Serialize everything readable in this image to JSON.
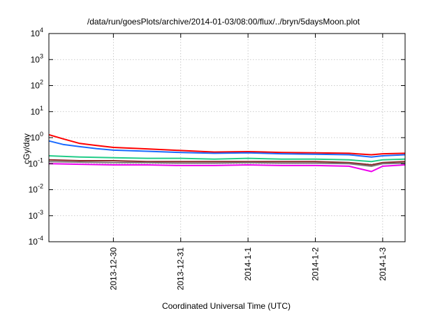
{
  "chart_data": {
    "type": "line",
    "title": "/data/run/goesPlots/archive/2014-01-03/08:00/flux/../bryn/5daysMoon.plot",
    "xlabel": "Coordinated Universal Time (UTC)",
    "ylabel": "cGy/day",
    "yscale": "log",
    "ylim": [
      0.0001,
      10000
    ],
    "xlim": [
      "2013-12-29 01:00",
      "2014-01-03 08:00"
    ],
    "x_ticks": [
      {
        "date": "2013-12-30 00:00",
        "label": "2013-12-30"
      },
      {
        "date": "2013-12-31 00:00",
        "label": "2013-12-31"
      },
      {
        "date": "2014-01-01 00:00",
        "label": "2014-1-1"
      },
      {
        "date": "2014-01-02 00:00",
        "label": "2014-1-2"
      },
      {
        "date": "2014-01-03 00:00",
        "label": "2014-1-3"
      }
    ],
    "y_ticks": [
      {
        "value": 0.0001,
        "base": "10",
        "exp": "-4"
      },
      {
        "value": 0.001,
        "base": "10",
        "exp": "-3"
      },
      {
        "value": 0.01,
        "base": "10",
        "exp": "-2"
      },
      {
        "value": 0.1,
        "base": "10",
        "exp": "-1"
      },
      {
        "value": 1,
        "base": "10",
        "exp": "0"
      },
      {
        "value": 10,
        "base": "10",
        "exp": "1"
      },
      {
        "value": 100,
        "base": "10",
        "exp": "2"
      },
      {
        "value": 1000,
        "base": "10",
        "exp": "3"
      },
      {
        "value": 10000,
        "base": "10",
        "exp": "4"
      }
    ],
    "grid": true,
    "legend": "none",
    "series": [
      {
        "color": "#ff0000",
        "x": [
          "2013-12-29 01:00",
          "2013-12-29 06:00",
          "2013-12-29 12:00",
          "2013-12-29 18:00",
          "2013-12-30 00:00",
          "2013-12-30 12:00",
          "2013-12-31 00:00",
          "2013-12-31 12:00",
          "2014-01-01 00:00",
          "2014-01-01 12:00",
          "2014-01-02 00:00",
          "2014-01-02 12:00",
          "2014-01-02 20:00",
          "2014-01-03 00:00",
          "2014-01-03 08:00"
        ],
        "values": [
          1.3,
          0.9,
          0.6,
          0.5,
          0.42,
          0.37,
          0.32,
          0.28,
          0.29,
          0.27,
          0.26,
          0.25,
          0.22,
          0.24,
          0.25
        ]
      },
      {
        "color": "#1a6aff",
        "x": [
          "2013-12-29 01:00",
          "2013-12-29 06:00",
          "2013-12-29 12:00",
          "2013-12-29 18:00",
          "2013-12-30 00:00",
          "2013-12-30 12:00",
          "2013-12-31 00:00",
          "2013-12-31 12:00",
          "2014-01-01 00:00",
          "2014-01-01 12:00",
          "2014-01-02 00:00",
          "2014-01-02 12:00",
          "2014-01-02 20:00",
          "2014-01-03 00:00",
          "2014-01-03 08:00"
        ],
        "values": [
          0.75,
          0.55,
          0.45,
          0.38,
          0.33,
          0.3,
          0.27,
          0.25,
          0.26,
          0.24,
          0.23,
          0.22,
          0.18,
          0.2,
          0.22
        ]
      },
      {
        "color": "#22cc88",
        "x": [
          "2013-12-29 01:00",
          "2013-12-29 12:00",
          "2013-12-30 00:00",
          "2013-12-30 12:00",
          "2013-12-31 00:00",
          "2013-12-31 12:00",
          "2014-01-01 00:00",
          "2014-01-01 12:00",
          "2014-01-02 00:00",
          "2014-01-02 12:00",
          "2014-01-02 20:00",
          "2014-01-03 00:00",
          "2014-01-03 08:00"
        ],
        "values": [
          0.2,
          0.18,
          0.17,
          0.16,
          0.16,
          0.15,
          0.16,
          0.15,
          0.15,
          0.14,
          0.12,
          0.14,
          0.15
        ]
      },
      {
        "color": "#8b2a2a",
        "x": [
          "2013-12-29 01:00",
          "2013-12-29 12:00",
          "2013-12-30 00:00",
          "2013-12-30 12:00",
          "2013-12-31 00:00",
          "2013-12-31 12:00",
          "2014-01-01 00:00",
          "2014-01-01 12:00",
          "2014-01-02 00:00",
          "2014-01-02 12:00",
          "2014-01-02 20:00",
          "2014-01-03 00:00",
          "2014-01-03 08:00"
        ],
        "values": [
          0.14,
          0.13,
          0.13,
          0.12,
          0.12,
          0.12,
          0.12,
          0.12,
          0.12,
          0.11,
          0.09,
          0.11,
          0.12
        ]
      },
      {
        "color": "#777777",
        "x": [
          "2013-12-29 01:00",
          "2013-12-29 12:00",
          "2013-12-30 00:00",
          "2013-12-30 12:00",
          "2013-12-31 00:00",
          "2013-12-31 12:00",
          "2014-01-01 00:00",
          "2014-01-01 12:00",
          "2014-01-02 00:00",
          "2014-01-02 12:00",
          "2014-01-02 20:00",
          "2014-01-03 00:00",
          "2014-01-03 08:00"
        ],
        "values": [
          0.12,
          0.115,
          0.11,
          0.11,
          0.105,
          0.105,
          0.11,
          0.105,
          0.105,
          0.1,
          0.08,
          0.1,
          0.105
        ]
      },
      {
        "color": "#ee00ee",
        "x": [
          "2013-12-29 01:00",
          "2013-12-29 12:00",
          "2013-12-30 00:00",
          "2013-12-30 12:00",
          "2013-12-31 00:00",
          "2013-12-31 12:00",
          "2014-01-01 00:00",
          "2014-01-01 12:00",
          "2014-01-02 00:00",
          "2014-01-02 12:00",
          "2014-01-02 20:00",
          "2014-01-03 00:00",
          "2014-01-03 08:00"
        ],
        "values": [
          0.1,
          0.095,
          0.09,
          0.09,
          0.085,
          0.085,
          0.09,
          0.085,
          0.085,
          0.08,
          0.05,
          0.08,
          0.09
        ]
      }
    ]
  }
}
